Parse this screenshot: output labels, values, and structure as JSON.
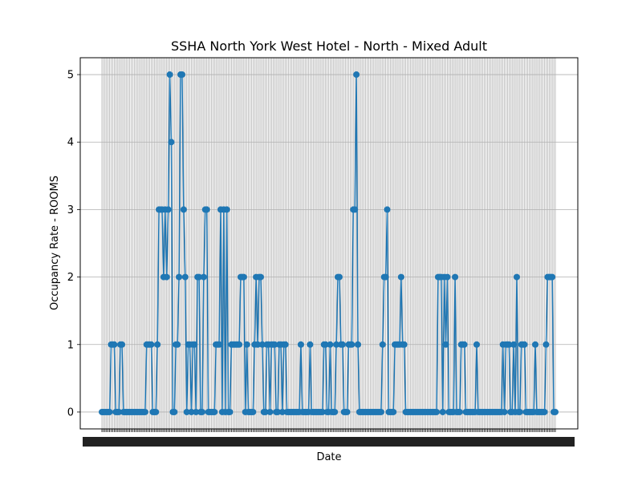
{
  "chart_data": {
    "type": "line",
    "title": "SSHA North York West Hotel - North - Mixed Adult",
    "xlabel": "Date",
    "ylabel": "Occupancy Rate - ROOMS",
    "ylim": [
      -0.25,
      5.25
    ],
    "yticks": [
      0,
      1,
      2,
      3,
      4,
      5
    ],
    "grid": true,
    "line_color": "#1f77b4",
    "marker": "circle",
    "x_tick_labels_note": "dense, overlapping date labels (illegible)",
    "series": [
      {
        "values": [
          0,
          0,
          0,
          0,
          0,
          0,
          1,
          1,
          1,
          0,
          0,
          0,
          1,
          1,
          0,
          0,
          0,
          0,
          0,
          0,
          0,
          0,
          0,
          0,
          0,
          0,
          0,
          0,
          0,
          1,
          1,
          1,
          1,
          0,
          0,
          0,
          1,
          3,
          3,
          3,
          2,
          3,
          2,
          3,
          5,
          4,
          0,
          0,
          1,
          1,
          2,
          5,
          5,
          3,
          2,
          0,
          1,
          1,
          0,
          1,
          1,
          0,
          2,
          2,
          0,
          0,
          2,
          3,
          3,
          0,
          0,
          0,
          0,
          0,
          1,
          1,
          1,
          3,
          0,
          3,
          0,
          3,
          0,
          0,
          1,
          1,
          1,
          1,
          1,
          1,
          2,
          2,
          2,
          0,
          1,
          0,
          0,
          0,
          0,
          1,
          2,
          1,
          2,
          2,
          1,
          0,
          0,
          1,
          1,
          0,
          1,
          1,
          1,
          0,
          0,
          1,
          1,
          0,
          1,
          1,
          0,
          0,
          0,
          0,
          0,
          0,
          0,
          0,
          0,
          1,
          0,
          0,
          0,
          0,
          0,
          1,
          0,
          0,
          0,
          0,
          0,
          0,
          0,
          0,
          1,
          1,
          0,
          0,
          1,
          0,
          0,
          0,
          1,
          2,
          2,
          1,
          1,
          0,
          0,
          0,
          1,
          1,
          1,
          3,
          3,
          5,
          1,
          0,
          0,
          0,
          0,
          0,
          0,
          0,
          0,
          0,
          0,
          0,
          0,
          0,
          0,
          0,
          1,
          2,
          2,
          3,
          0,
          0,
          0,
          0,
          1,
          1,
          1,
          1,
          2,
          1,
          1,
          0,
          0,
          0,
          0,
          0,
          0,
          0,
          0,
          0,
          0,
          0,
          0,
          0,
          0,
          0,
          0,
          0,
          0,
          0,
          0,
          0,
          2,
          2,
          2,
          0,
          2,
          1,
          2,
          0,
          0,
          0,
          0,
          2,
          0,
          0,
          0,
          1,
          1,
          1,
          0,
          0,
          0,
          0,
          0,
          0,
          0,
          1,
          0,
          0,
          0,
          0,
          0,
          0,
          0,
          0,
          0,
          0,
          0,
          0,
          0,
          0,
          0,
          0,
          1,
          0,
          1,
          1,
          1,
          0,
          0,
          1,
          0,
          2,
          0,
          0,
          1,
          1,
          1,
          0,
          0,
          0,
          0,
          0,
          0,
          1,
          0,
          0,
          0,
          0,
          0,
          0,
          1,
          2,
          2,
          2,
          2,
          0,
          0
        ]
      }
    ]
  }
}
